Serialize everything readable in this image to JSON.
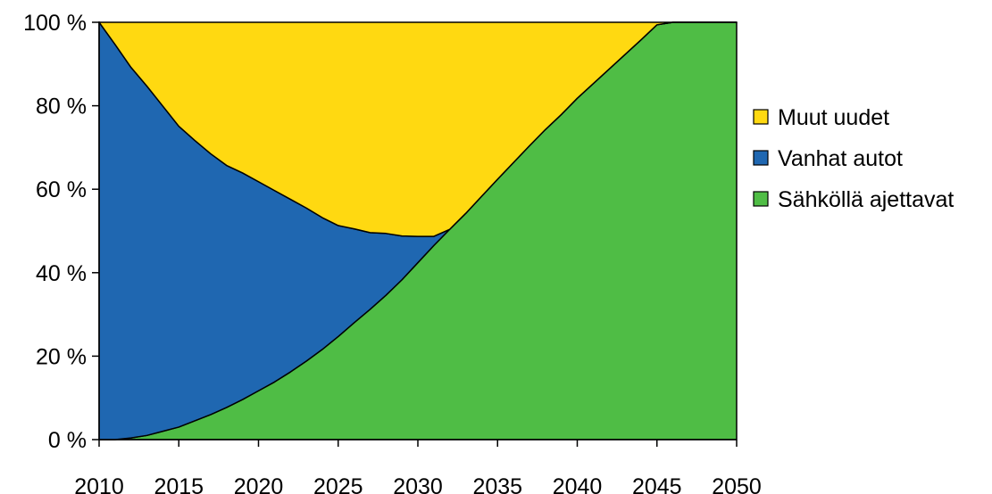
{
  "chart_data": {
    "type": "area",
    "stacked": true,
    "percent": true,
    "x": [
      2010,
      2011,
      2012,
      2013,
      2014,
      2015,
      2016,
      2017,
      2018,
      2019,
      2020,
      2021,
      2022,
      2023,
      2024,
      2025,
      2026,
      2027,
      2028,
      2029,
      2030,
      2031,
      2032,
      2033,
      2034,
      2035,
      2036,
      2037,
      2038,
      2039,
      2040,
      2041,
      2042,
      2043,
      2044,
      2045,
      2046,
      2047,
      2048,
      2049,
      2050
    ],
    "series": [
      {
        "name": "Sähköllä ajettavat",
        "color": "#4fbd45",
        "values": [
          0,
          0,
          0.4,
          1,
          2,
          3,
          4.5,
          6,
          7.7,
          9.6,
          11.7,
          13.8,
          16.2,
          18.8,
          21.6,
          24.7,
          28,
          31.2,
          34.6,
          38.3,
          42.4,
          46.5,
          50.4,
          54.2,
          58.3,
          62.4,
          66.4,
          70.4,
          74.3,
          77.9,
          81.8,
          85.3,
          88.8,
          92.3,
          95.8,
          99.4,
          100,
          100,
          100,
          100,
          100
        ]
      },
      {
        "name": "Vanhat autot",
        "color": "#1f67b1",
        "values": [
          100,
          94.7,
          88.8,
          83.7,
          77.9,
          72.1,
          67.2,
          62.5,
          58,
          54.3,
          50.1,
          45.9,
          41.4,
          36.7,
          31.6,
          26.6,
          22.5,
          18.4,
          14.8,
          10.5,
          6.3,
          2.2,
          0,
          0,
          0,
          0,
          0,
          0,
          0,
          0,
          0,
          0,
          0,
          0,
          0,
          0,
          0,
          0,
          0,
          0,
          0
        ]
      },
      {
        "name": "Muut uudet",
        "color": "#ffd911",
        "values": [
          0,
          5.3,
          10.8,
          15.3,
          20.1,
          24.9,
          28.3,
          31.5,
          34.3,
          36.1,
          38.2,
          40.3,
          42.4,
          44.5,
          46.8,
          48.7,
          49.5,
          50.4,
          50.6,
          51.2,
          51.3,
          51.3,
          49.6,
          45.8,
          41.7,
          37.6,
          33.6,
          29.6,
          25.7,
          22.1,
          18.2,
          14.7,
          11.2,
          7.7,
          4.2,
          0.6,
          0,
          0,
          0,
          0,
          0
        ]
      }
    ],
    "legend_order": [
      "Muut uudet",
      "Vanhat autot",
      "Sähköllä ajettavat"
    ],
    "legend_position": "right",
    "xlim": [
      2010,
      2050
    ],
    "ylim": [
      0,
      100
    ],
    "x_ticks": [
      "2010",
      "2015",
      "2020",
      "2025",
      "2030",
      "2035",
      "2040",
      "2045",
      "2050"
    ],
    "y_ticks": [
      "0 %",
      "20 %",
      "40 %",
      "60 %",
      "80 %",
      "100 %"
    ],
    "title": "",
    "xlabel": "",
    "ylabel": "",
    "grid": false
  }
}
